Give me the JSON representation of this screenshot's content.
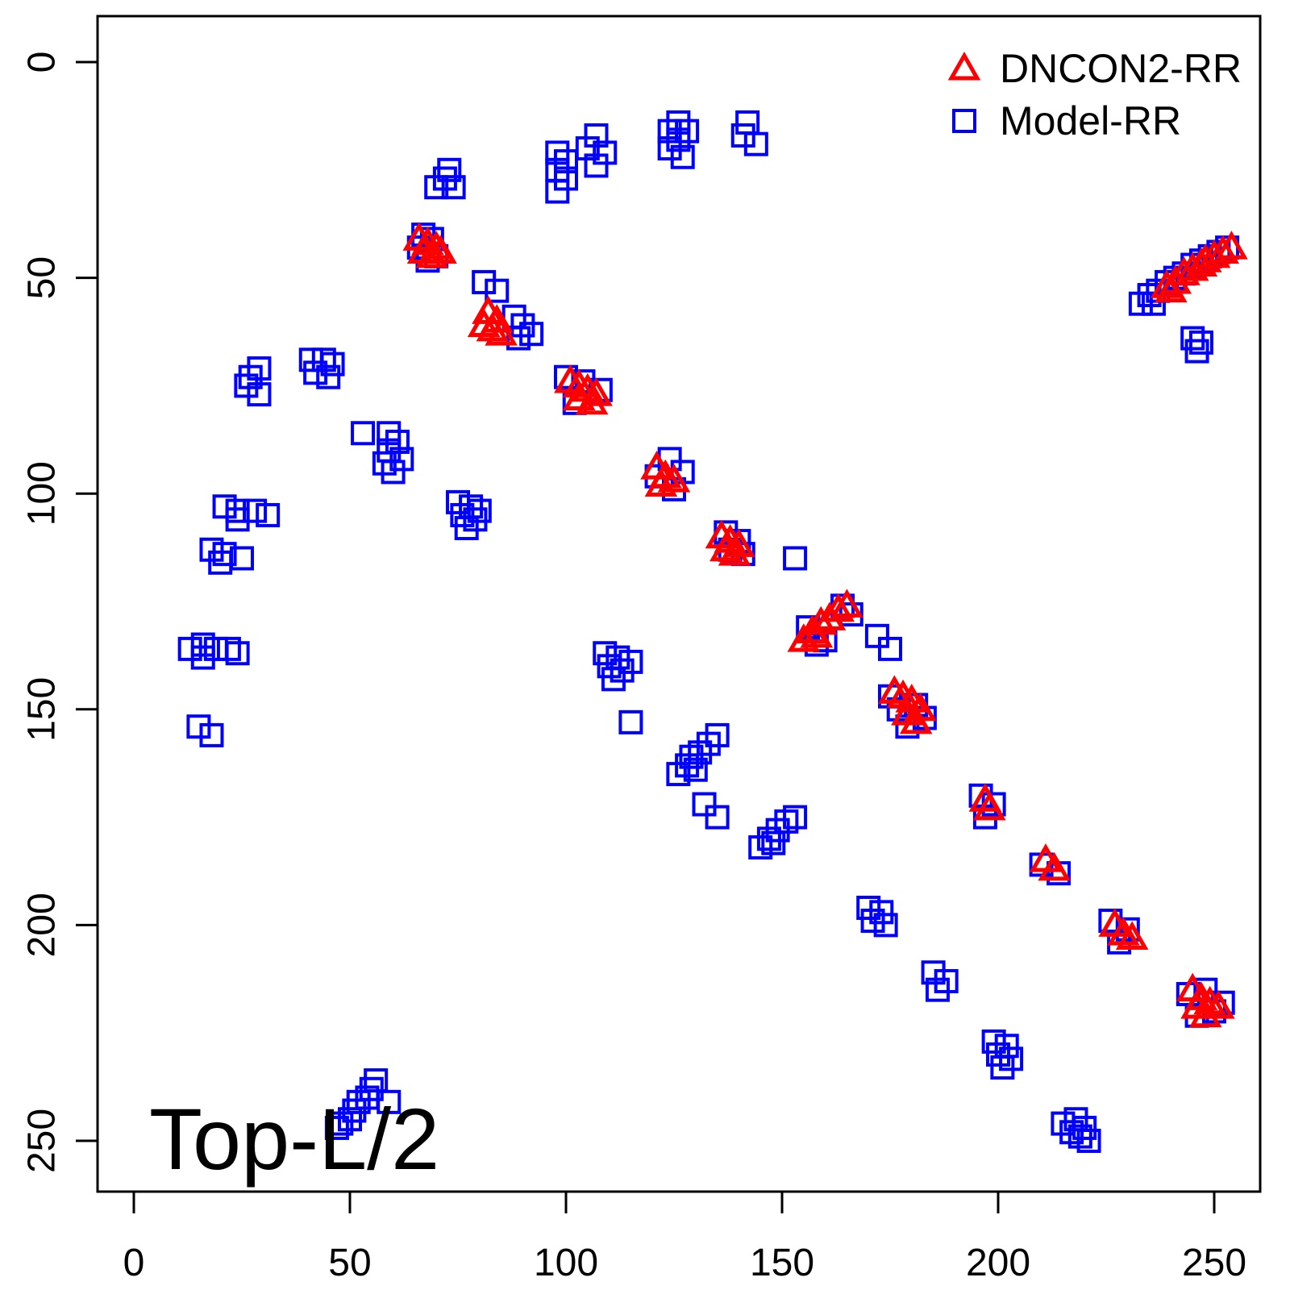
{
  "figure": {
    "background": "#FFFFFF",
    "axis_color": "#000000",
    "annotation": "Top-L/2"
  },
  "legend": {
    "position": "top-right",
    "entries": [
      {
        "label": "DNCON2-RR",
        "marker": "triangle",
        "color": "#FF0000"
      },
      {
        "label": "Model-RR",
        "marker": "square",
        "color": "#0000FF"
      }
    ]
  },
  "chart_data": {
    "type": "scatter",
    "title": "",
    "xlabel": "",
    "ylabel": "",
    "annotation": "Top-L/2",
    "grid": false,
    "legend_position": "top-right",
    "x_ticks": [
      0,
      50,
      100,
      150,
      200,
      250
    ],
    "y_ticks": [
      0,
      50,
      100,
      150,
      200,
      250
    ],
    "x_range": [
      -9,
      261
    ],
    "y_range": [
      -9,
      261
    ],
    "y_axis_inverted": true,
    "series": [
      {
        "name": "Model-RR",
        "marker": "square",
        "color": "#0000FF",
        "points": [
          [
            73,
            25
          ],
          [
            70,
            29
          ],
          [
            74,
            29
          ],
          [
            72,
            27
          ],
          [
            98,
            21
          ],
          [
            100,
            23
          ],
          [
            98,
            25
          ],
          [
            100,
            27
          ],
          [
            98,
            30
          ],
          [
            107,
            17
          ],
          [
            105,
            20
          ],
          [
            109,
            21
          ],
          [
            107,
            24
          ],
          [
            126,
            14
          ],
          [
            124,
            16
          ],
          [
            128,
            16
          ],
          [
            126,
            18
          ],
          [
            124,
            20
          ],
          [
            127,
            22
          ],
          [
            142,
            14
          ],
          [
            141,
            17
          ],
          [
            144,
            19
          ],
          [
            67,
            40
          ],
          [
            69,
            41
          ],
          [
            66,
            43
          ],
          [
            70,
            45
          ],
          [
            68,
            46
          ],
          [
            81,
            51
          ],
          [
            84,
            53
          ],
          [
            88,
            59
          ],
          [
            90,
            61
          ],
          [
            92,
            63
          ],
          [
            89,
            64
          ],
          [
            233,
            56
          ],
          [
            235,
            54
          ],
          [
            236,
            56
          ],
          [
            237,
            53
          ],
          [
            239,
            51
          ],
          [
            241,
            50
          ],
          [
            243,
            49
          ],
          [
            245,
            47
          ],
          [
            247,
            46
          ],
          [
            249,
            45
          ],
          [
            251,
            44
          ],
          [
            253,
            43
          ],
          [
            245,
            64
          ],
          [
            247,
            65
          ],
          [
            246,
            67
          ],
          [
            29,
            71
          ],
          [
            26,
            75
          ],
          [
            29,
            77
          ],
          [
            27,
            73
          ],
          [
            41,
            69
          ],
          [
            44,
            69
          ],
          [
            46,
            70
          ],
          [
            42,
            72
          ],
          [
            45,
            73
          ],
          [
            53,
            86
          ],
          [
            59,
            86
          ],
          [
            61,
            88
          ],
          [
            59,
            90
          ],
          [
            62,
            92
          ],
          [
            58,
            93
          ],
          [
            60,
            95
          ],
          [
            21,
            103
          ],
          [
            24,
            104
          ],
          [
            28,
            104
          ],
          [
            31,
            105
          ],
          [
            24,
            106
          ],
          [
            18,
            113
          ],
          [
            21,
            114
          ],
          [
            25,
            115
          ],
          [
            20,
            116
          ],
          [
            75,
            102
          ],
          [
            78,
            103
          ],
          [
            76,
            105
          ],
          [
            79,
            106
          ],
          [
            77,
            108
          ],
          [
            80,
            104
          ],
          [
            100,
            73
          ],
          [
            104,
            74
          ],
          [
            108,
            76
          ],
          [
            102,
            79
          ],
          [
            124,
            92
          ],
          [
            127,
            95
          ],
          [
            121,
            96
          ],
          [
            125,
            99
          ],
          [
            137,
            109
          ],
          [
            140,
            111
          ],
          [
            138,
            113
          ],
          [
            141,
            114
          ],
          [
            153,
            115
          ],
          [
            156,
            131
          ],
          [
            160,
            134
          ],
          [
            164,
            126
          ],
          [
            166,
            128
          ],
          [
            158,
            135
          ],
          [
            172,
            133
          ],
          [
            175,
            136
          ],
          [
            13,
            136
          ],
          [
            16,
            135
          ],
          [
            19,
            136
          ],
          [
            22,
            136
          ],
          [
            24,
            137
          ],
          [
            16,
            138
          ],
          [
            15,
            154
          ],
          [
            18,
            156
          ],
          [
            109,
            137
          ],
          [
            112,
            138
          ],
          [
            110,
            140
          ],
          [
            113,
            141
          ],
          [
            111,
            143
          ],
          [
            115,
            139
          ],
          [
            115,
            153
          ],
          [
            126,
            165
          ],
          [
            128,
            163
          ],
          [
            129,
            161
          ],
          [
            131,
            160
          ],
          [
            133,
            158
          ],
          [
            135,
            156
          ],
          [
            130,
            164
          ],
          [
            132,
            172
          ],
          [
            135,
            175
          ],
          [
            145,
            182
          ],
          [
            147,
            180
          ],
          [
            149,
            178
          ],
          [
            151,
            176
          ],
          [
            153,
            175
          ],
          [
            148,
            181
          ],
          [
            175,
            147
          ],
          [
            177,
            150
          ],
          [
            181,
            149
          ],
          [
            183,
            152
          ],
          [
            179,
            154
          ],
          [
            196,
            170
          ],
          [
            199,
            172
          ],
          [
            197,
            175
          ],
          [
            210,
            186
          ],
          [
            214,
            188
          ],
          [
            226,
            199
          ],
          [
            230,
            201
          ],
          [
            228,
            204
          ],
          [
            244,
            216
          ],
          [
            248,
            215
          ],
          [
            250,
            220
          ],
          [
            246,
            221
          ],
          [
            252,
            218
          ],
          [
            170,
            196
          ],
          [
            173,
            197
          ],
          [
            171,
            199
          ],
          [
            174,
            200
          ],
          [
            185,
            211
          ],
          [
            188,
            213
          ],
          [
            186,
            215
          ],
          [
            199,
            227
          ],
          [
            202,
            228
          ],
          [
            200,
            230
          ],
          [
            203,
            231
          ],
          [
            201,
            233
          ],
          [
            215,
            246
          ],
          [
            218,
            245
          ],
          [
            220,
            247
          ],
          [
            219,
            249
          ],
          [
            221,
            250
          ],
          [
            217,
            248
          ],
          [
            47,
            247
          ],
          [
            48,
            246
          ],
          [
            50,
            245
          ],
          [
            51,
            243
          ],
          [
            52,
            241
          ],
          [
            54,
            240
          ],
          [
            55,
            238
          ],
          [
            56,
            236
          ],
          [
            59,
            241
          ]
        ]
      },
      {
        "name": "DNCON2-RR",
        "marker": "triangle",
        "color": "#FF0000",
        "points": [
          [
            66,
            41
          ],
          [
            68,
            42
          ],
          [
            70,
            43
          ],
          [
            67,
            44
          ],
          [
            69,
            45
          ],
          [
            71,
            44
          ],
          [
            82,
            58
          ],
          [
            84,
            60
          ],
          [
            83,
            62
          ],
          [
            85,
            63
          ],
          [
            81,
            61
          ],
          [
            239,
            52
          ],
          [
            240,
            53
          ],
          [
            241,
            51
          ],
          [
            243,
            49
          ],
          [
            245,
            48
          ],
          [
            247,
            47
          ],
          [
            248,
            46
          ],
          [
            250,
            45
          ],
          [
            252,
            44
          ],
          [
            254,
            43
          ],
          [
            101,
            74
          ],
          [
            103,
            75
          ],
          [
            105,
            76
          ],
          [
            107,
            77
          ],
          [
            103,
            78
          ],
          [
            106,
            79
          ],
          [
            121,
            94
          ],
          [
            123,
            96
          ],
          [
            125,
            97
          ],
          [
            122,
            98
          ],
          [
            136,
            110
          ],
          [
            138,
            111
          ],
          [
            140,
            112
          ],
          [
            137,
            113
          ],
          [
            139,
            114
          ],
          [
            155,
            134
          ],
          [
            157,
            132
          ],
          [
            159,
            130
          ],
          [
            161,
            129
          ],
          [
            163,
            127
          ],
          [
            165,
            126
          ],
          [
            158,
            133
          ],
          [
            176,
            146
          ],
          [
            178,
            147
          ],
          [
            180,
            148
          ],
          [
            182,
            150
          ],
          [
            179,
            151
          ],
          [
            181,
            153
          ],
          [
            197,
            171
          ],
          [
            198,
            173
          ],
          [
            211,
            185
          ],
          [
            213,
            187
          ],
          [
            227,
            200
          ],
          [
            229,
            202
          ],
          [
            231,
            203
          ],
          [
            245,
            215
          ],
          [
            247,
            217
          ],
          [
            249,
            218
          ],
          [
            251,
            219
          ],
          [
            246,
            219
          ],
          [
            248,
            221
          ]
        ]
      }
    ]
  }
}
